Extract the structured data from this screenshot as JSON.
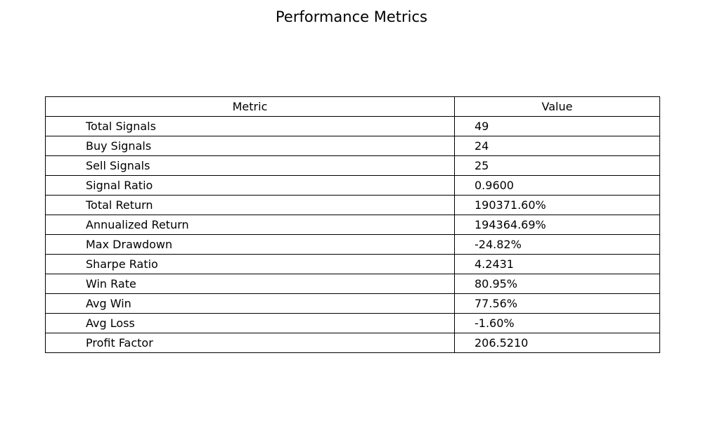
{
  "chart_data": {
    "type": "table",
    "title": "Performance Metrics",
    "columns": [
      "Metric",
      "Value"
    ],
    "rows": [
      [
        "Total Signals",
        "49"
      ],
      [
        "Buy Signals",
        "24"
      ],
      [
        "Sell Signals",
        "25"
      ],
      [
        "Signal Ratio",
        "0.9600"
      ],
      [
        "Total Return",
        "190371.60%"
      ],
      [
        "Annualized Return",
        "194364.69%"
      ],
      [
        "Max Drawdown",
        "-24.82%"
      ],
      [
        "Sharpe Ratio",
        "4.2431"
      ],
      [
        "Win Rate",
        "80.95%"
      ],
      [
        "Avg Win",
        "77.56%"
      ],
      [
        "Avg Loss",
        "-1.60%"
      ],
      [
        "Profit Factor",
        "206.5210"
      ]
    ]
  }
}
